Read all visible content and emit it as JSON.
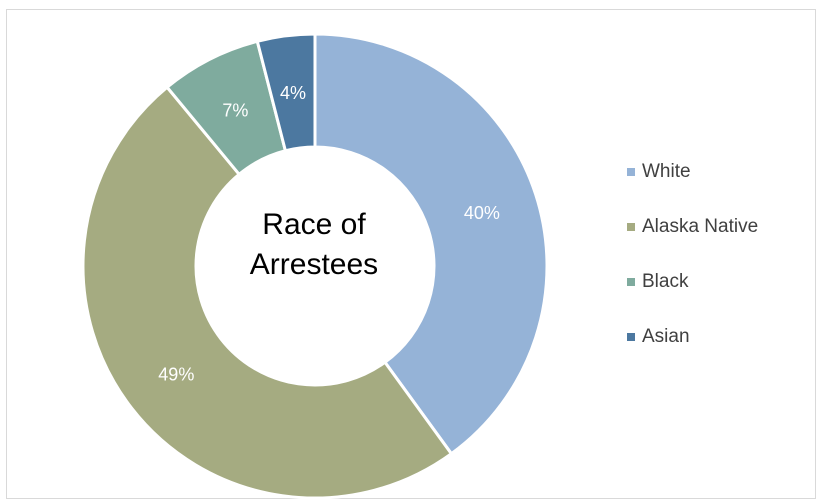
{
  "chart_data": {
    "type": "pie",
    "title": "Race of Arrestees",
    "title_lines": [
      "Race of",
      "Arrestees"
    ],
    "categories": [
      "White",
      "Alaska Native",
      "Black",
      "Asian"
    ],
    "values": [
      40,
      49,
      7,
      4
    ],
    "data_labels": [
      "40%",
      "49%",
      "7%",
      "4%"
    ],
    "colors": [
      "#95b3d7",
      "#a5ab81",
      "#7fab9e",
      "#4c78a0"
    ],
    "donut": true,
    "legend_position": "right"
  }
}
